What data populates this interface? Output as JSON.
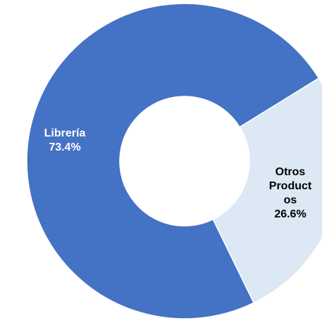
{
  "chart_data": {
    "type": "donut",
    "categories": [
      "Librería",
      "Otros Productos"
    ],
    "values": [
      73.4,
      26.6
    ],
    "value_labels": [
      "73.4%",
      "26.6%"
    ],
    "colors": [
      "#4472c4",
      "#dde8f5"
    ],
    "label_colors": [
      "#ffffff",
      "#000000"
    ]
  }
}
